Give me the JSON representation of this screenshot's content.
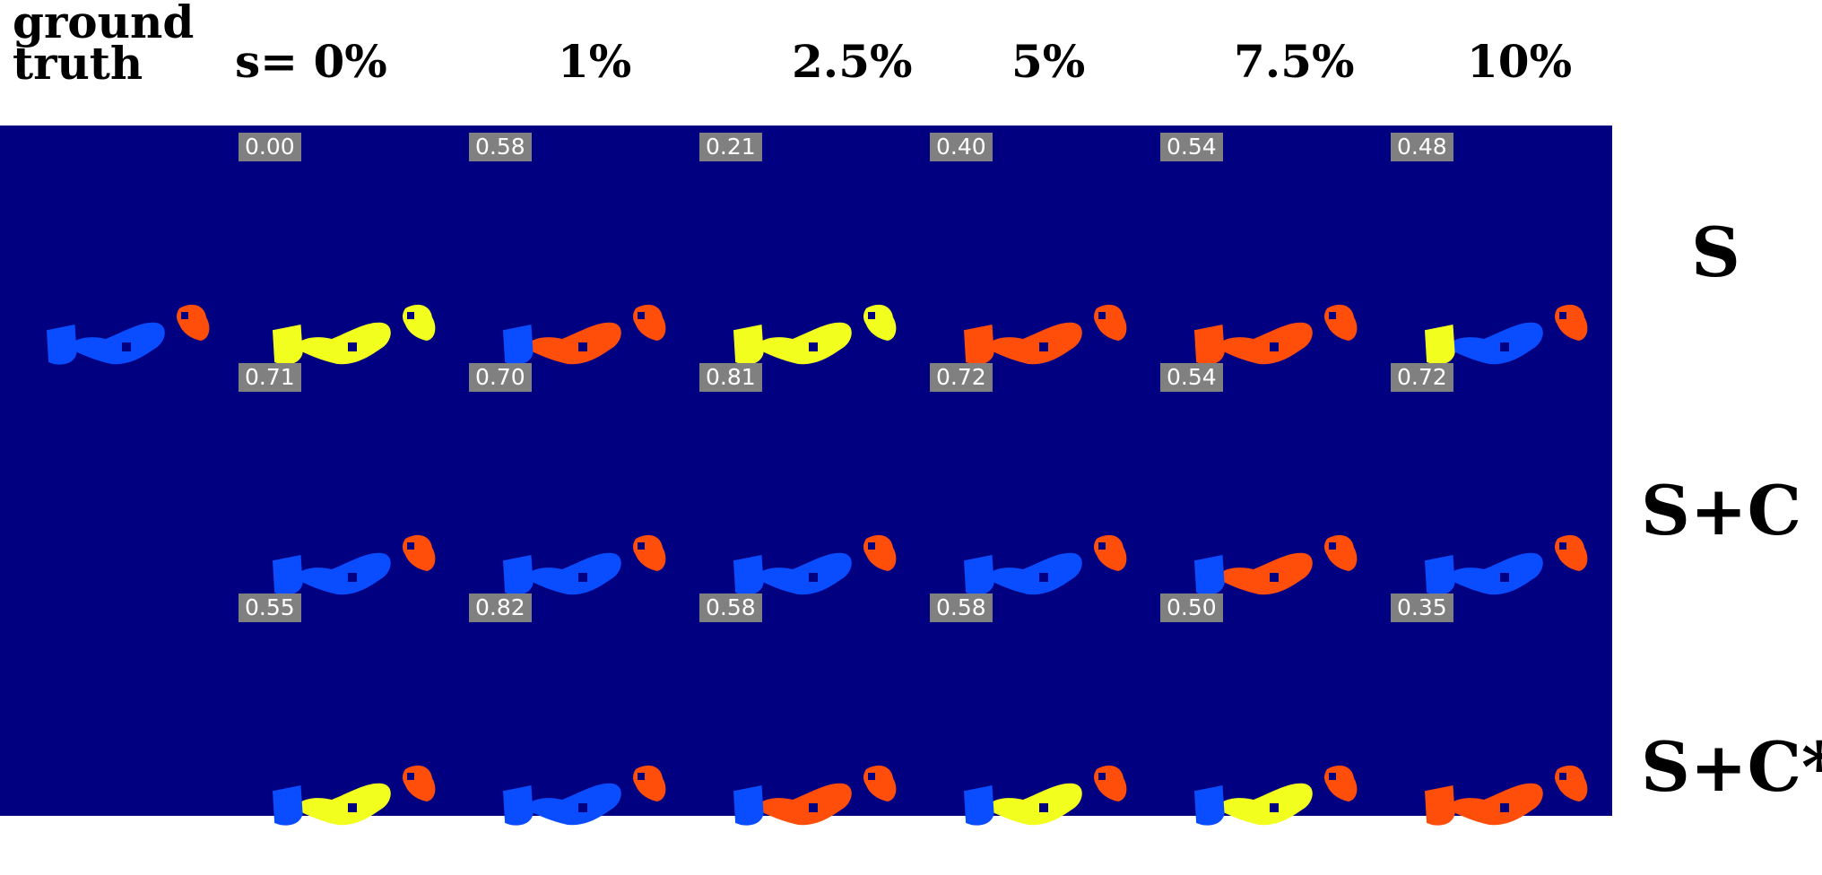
{
  "header": {
    "ground_truth": "ground\ntruth",
    "columns": [
      "s= 0%",
      "1%",
      "2.5%",
      "5%",
      "7.5%",
      "10%"
    ]
  },
  "rows": [
    {
      "label": "S",
      "scores": [
        "0.00",
        "0.58",
        "0.21",
        "0.40",
        "0.54",
        "0.48"
      ]
    },
    {
      "label": "S+C",
      "scores": [
        "0.71",
        "0.70",
        "0.81",
        "0.72",
        "0.54",
        "0.72"
      ]
    },
    {
      "label": "S+C*",
      "scores": [
        "0.55",
        "0.82",
        "0.58",
        "0.58",
        "0.50",
        "0.35"
      ]
    }
  ],
  "colors": {
    "background": "#000080",
    "blue_region": "#0a4cff",
    "yellow_region": "#f2ff1e",
    "orange_region": "#ff4d0a",
    "score_box": "#808080"
  },
  "segment_colors": [
    [
      "blue",
      "blue",
      "orange"
    ],
    [
      [
        "yellow",
        "yellow",
        "yellow"
      ],
      [
        "orange",
        "blue",
        "orange"
      ],
      [
        "yellow",
        "yellow",
        "yellow"
      ],
      [
        "orange",
        "orange",
        "orange"
      ],
      [
        "orange",
        "orange",
        "orange"
      ],
      [
        "blue",
        "yellow",
        "orange"
      ]
    ],
    [
      [
        "blue",
        "blue",
        "orange"
      ],
      [
        "blue",
        "blue",
        "orange"
      ],
      [
        "blue",
        "blue",
        "orange"
      ],
      [
        "blue",
        "blue",
        "orange"
      ],
      [
        "orange",
        "blue",
        "orange"
      ],
      [
        "blue",
        "blue",
        "orange"
      ]
    ],
    [
      [
        "yellow",
        "blue",
        "orange"
      ],
      [
        "blue",
        "blue",
        "orange"
      ],
      [
        "orange",
        "blue",
        "orange"
      ],
      [
        "yellow",
        "blue",
        "orange"
      ],
      [
        "yellow",
        "blue",
        "orange"
      ],
      [
        "orange",
        "orange",
        "orange"
      ]
    ]
  ]
}
